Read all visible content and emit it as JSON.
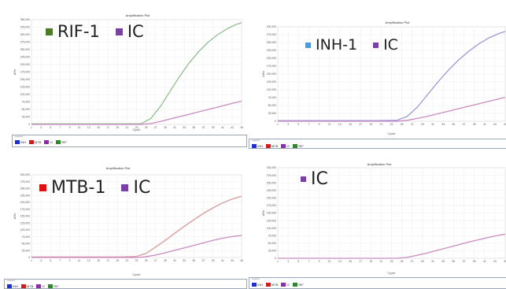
{
  "chart_data": [
    {
      "type": "line",
      "title": "Amplification Plot",
      "xlabel": "Cycle",
      "ylabel": "ΔRn",
      "xlim": [
        1,
        45
      ],
      "ylim": [
        0,
        350000
      ],
      "yticks": [
        "0",
        "25,000",
        "50,000",
        "75,000",
        "100,000",
        "125,000",
        "150,000",
        "175,000",
        "200,000",
        "225,000",
        "250,000",
        "275,000",
        "300,000",
        "325,000",
        "350,000"
      ],
      "xticks": [
        "1",
        "3",
        "5",
        "7",
        "9",
        "11",
        "13",
        "15",
        "17",
        "19",
        "21",
        "23",
        "25",
        "27",
        "29",
        "31",
        "33",
        "35",
        "37",
        "39",
        "41",
        "43",
        "45"
      ],
      "big_legend": [
        {
          "label": "RIF-1",
          "color": "#4e7a2a"
        },
        {
          "label": "IC",
          "color": "#7a3fa8"
        }
      ],
      "legend_title": "Legend",
      "legend": [
        {
          "label": "INH",
          "color": "#1c2fd1"
        },
        {
          "label": "MTB",
          "color": "#d11c1c"
        },
        {
          "label": "IC",
          "color": "#8a2fa8"
        },
        {
          "label": "RIF",
          "color": "#2a8a2a"
        }
      ],
      "series": [
        {
          "name": "RIF",
          "color": "#8fbf8f",
          "x": [
            1,
            5,
            10,
            15,
            20,
            24,
            26,
            28,
            30,
            32,
            34,
            36,
            38,
            40,
            42,
            44,
            45
          ],
          "values": [
            2000,
            2000,
            2000,
            2000,
            2000,
            2500,
            20000,
            60000,
            110000,
            160000,
            205000,
            243000,
            275000,
            300000,
            320000,
            335000,
            340000
          ]
        },
        {
          "name": "IC",
          "color": "#c98ac2",
          "x": [
            1,
            5,
            10,
            15,
            20,
            24,
            26,
            28,
            30,
            32,
            34,
            36,
            38,
            40,
            42,
            44,
            45
          ],
          "values": [
            0,
            0,
            0,
            0,
            0,
            0,
            3000,
            10000,
            18000,
            26000,
            34000,
            42000,
            50000,
            58000,
            66000,
            74000,
            78000
          ]
        }
      ]
    },
    {
      "type": "line",
      "title": "Amplification Plot",
      "xlabel": "Cycle",
      "ylabel": "ΔRn",
      "xlim": [
        1,
        45
      ],
      "ylim": [
        0,
        300000
      ],
      "yticks": [
        "0",
        "25,000",
        "50,000",
        "75,000",
        "100,000",
        "125,000",
        "150,000",
        "175,000",
        "200,000",
        "225,000",
        "250,000",
        "275,000",
        "300,000"
      ],
      "xticks": [
        "1",
        "3",
        "5",
        "7",
        "9",
        "11",
        "13",
        "15",
        "17",
        "19",
        "21",
        "23",
        "25",
        "27",
        "29",
        "31",
        "33",
        "35",
        "37",
        "39",
        "41",
        "43",
        "45"
      ],
      "big_legend": [
        {
          "label": "INH-1",
          "color": "#4f9ad6"
        },
        {
          "label": "IC",
          "color": "#7a3fa8"
        }
      ],
      "legend_title": "Legend",
      "legend": [
        {
          "label": "INH",
          "color": "#1c2fd1"
        },
        {
          "label": "MTB",
          "color": "#d11c1c"
        },
        {
          "label": "IC",
          "color": "#8a2fa8"
        },
        {
          "label": "RIF",
          "color": "#2a8a2a"
        }
      ],
      "series": [
        {
          "name": "INH",
          "color": "#9a9ad8",
          "x": [
            1,
            5,
            10,
            15,
            20,
            24,
            26,
            28,
            30,
            32,
            34,
            36,
            38,
            40,
            42,
            44,
            45
          ],
          "values": [
            2000,
            2000,
            2000,
            2000,
            2000,
            3000,
            15000,
            45000,
            85000,
            125000,
            162000,
            195000,
            223000,
            247000,
            266000,
            280000,
            285000
          ]
        },
        {
          "name": "IC",
          "color": "#c98ac2",
          "x": [
            1,
            5,
            10,
            15,
            20,
            24,
            26,
            28,
            30,
            32,
            34,
            36,
            38,
            40,
            42,
            44,
            45
          ],
          "values": [
            0,
            0,
            0,
            0,
            0,
            0,
            3000,
            9000,
            16000,
            24000,
            32000,
            40000,
            48000,
            56000,
            64000,
            72000,
            76000
          ]
        }
      ]
    },
    {
      "type": "line",
      "title": "Amplification Plot",
      "xlabel": "Cycle",
      "ylabel": "ΔRn",
      "xlim": [
        1,
        45
      ],
      "ylim": [
        0,
        300000
      ],
      "yticks": [
        "0",
        "25,000",
        "50,000",
        "75,000",
        "100,000",
        "125,000",
        "150,000",
        "175,000",
        "200,000",
        "225,000",
        "250,000",
        "275,000",
        "300,000"
      ],
      "xticks": [
        "1",
        "3",
        "5",
        "7",
        "9",
        "11",
        "13",
        "15",
        "17",
        "19",
        "21",
        "23",
        "25",
        "27",
        "29",
        "31",
        "33",
        "35",
        "37",
        "39",
        "41",
        "43",
        "45"
      ],
      "big_legend": [
        {
          "label": "MTB-1",
          "color": "#e01010"
        },
        {
          "label": "IC",
          "color": "#7a3fa8"
        }
      ],
      "legend_title": "Legend",
      "legend": [
        {
          "label": "INH",
          "color": "#1c2fd1"
        },
        {
          "label": "MTB",
          "color": "#d11c1c"
        },
        {
          "label": "IC",
          "color": "#8a2fa8"
        },
        {
          "label": "RIF",
          "color": "#2a8a2a"
        }
      ],
      "series": [
        {
          "name": "MTB",
          "color": "#d89a9a",
          "x": [
            1,
            5,
            10,
            15,
            20,
            23,
            25,
            27,
            29,
            31,
            33,
            35,
            37,
            39,
            41,
            43,
            45
          ],
          "values": [
            2000,
            2000,
            2000,
            2000,
            2000,
            4000,
            15000,
            38000,
            62000,
            88000,
            113000,
            137000,
            160000,
            180000,
            198000,
            212000,
            222000
          ]
        },
        {
          "name": "IC",
          "color": "#c98ac2",
          "x": [
            1,
            5,
            10,
            15,
            20,
            23,
            25,
            27,
            29,
            31,
            33,
            35,
            37,
            39,
            41,
            43,
            45
          ],
          "values": [
            0,
            0,
            0,
            0,
            0,
            0,
            3000,
            9000,
            17000,
            26000,
            35000,
            44000,
            53000,
            62000,
            70000,
            76000,
            80000
          ]
        }
      ]
    },
    {
      "type": "line",
      "title": "Amplification Plot",
      "xlabel": "Cycle",
      "ylabel": "ΔRn",
      "xlim": [
        1,
        45
      ],
      "ylim": [
        0,
        300000
      ],
      "yticks": [
        "0",
        "25,000",
        "50,000",
        "75,000",
        "100,000",
        "125,000",
        "150,000",
        "175,000",
        "200,000",
        "225,000",
        "250,000",
        "275,000",
        "300,000"
      ],
      "xticks": [
        "1",
        "3",
        "5",
        "7",
        "9",
        "11",
        "13",
        "15",
        "17",
        "19",
        "21",
        "23",
        "25",
        "27",
        "29",
        "31",
        "33",
        "35",
        "37",
        "39",
        "41",
        "43",
        "45"
      ],
      "big_legend": [
        {
          "label": "IC",
          "color": "#7a3fa8"
        }
      ],
      "legend_title": "Legend",
      "legend": [
        {
          "label": "INH",
          "color": "#1c2fd1"
        },
        {
          "label": "MTB",
          "color": "#d11c1c"
        },
        {
          "label": "IC",
          "color": "#8a2fa8"
        },
        {
          "label": "RIF",
          "color": "#2a8a2a"
        }
      ],
      "series": [
        {
          "name": "IC",
          "color": "#c98ac2",
          "x": [
            1,
            5,
            10,
            15,
            20,
            24,
            26,
            28,
            30,
            32,
            34,
            36,
            38,
            40,
            42,
            44,
            45
          ],
          "values": [
            0,
            0,
            0,
            0,
            0,
            0,
            3000,
            10000,
            18000,
            27000,
            36000,
            45000,
            54000,
            62000,
            70000,
            77000,
            80000
          ]
        }
      ]
    }
  ]
}
